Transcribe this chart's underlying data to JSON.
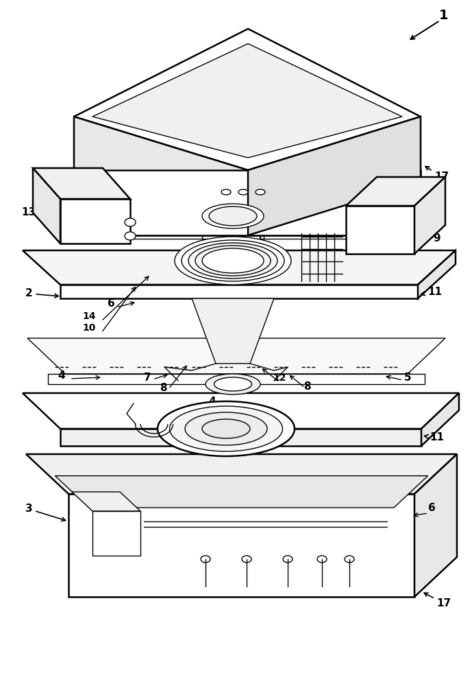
{
  "bg_color": "#ffffff",
  "lc": "#000000",
  "lw": 1.8,
  "tlw": 1.0,
  "fig_w": 6.89,
  "fig_h": 10.0,
  "font_size": 11,
  "label_font_size": 13,
  "arrow_lw": 1.2
}
